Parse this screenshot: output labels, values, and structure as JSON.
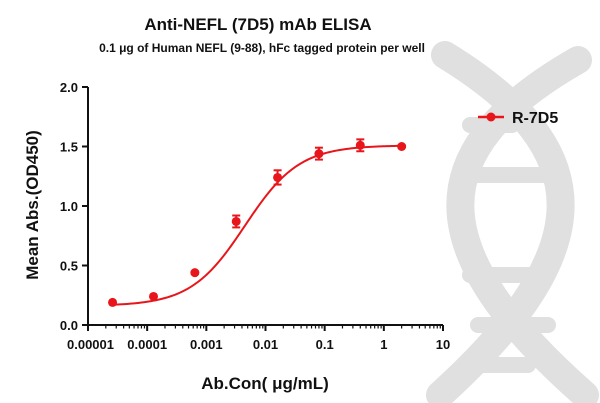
{
  "chart_data": {
    "type": "line",
    "title": "Anti-NEFL (7D5) mAb ELISA",
    "subtitle": "0.1 μg of Human NEFL (9-88), hFc tagged protein per well",
    "xlabel": "Ab.Con( μg/mL)",
    "ylabel": "Mean Abs.(OD450)",
    "x_scale": "log",
    "xlim": [
      1e-05,
      10
    ],
    "ylim": [
      0,
      2.0
    ],
    "x_ticks": [
      1e-05,
      0.0001,
      0.001,
      0.01,
      0.1,
      1,
      10
    ],
    "x_tick_labels": [
      "0.00001",
      "0.0001",
      "0.001",
      "0.01",
      "0.1",
      "1",
      "10"
    ],
    "y_ticks": [
      0,
      0.5,
      1.0,
      1.5,
      2.0
    ],
    "y_tick_labels": [
      "0.0",
      "0.5",
      "1.0",
      "1.5",
      "2.0"
    ],
    "grid": false,
    "legend_position": "top-right",
    "series": [
      {
        "name": "R-7D5",
        "color": "#e8161b",
        "x": [
          2.6e-05,
          0.000128,
          0.00064,
          0.0032,
          0.016,
          0.08,
          0.4,
          2
        ],
        "y": [
          0.19,
          0.24,
          0.44,
          0.87,
          1.24,
          1.44,
          1.51,
          1.5
        ],
        "error": [
          0.01,
          0.01,
          0.01,
          0.05,
          0.06,
          0.05,
          0.05,
          0.01
        ],
        "fit": {
          "bottom": 0.16,
          "top": 1.51,
          "ec50": 0.0045,
          "hill": 0.95
        }
      }
    ]
  },
  "watermark": {
    "icon": "dna-helix-icon",
    "color": "#e0e0e0"
  }
}
